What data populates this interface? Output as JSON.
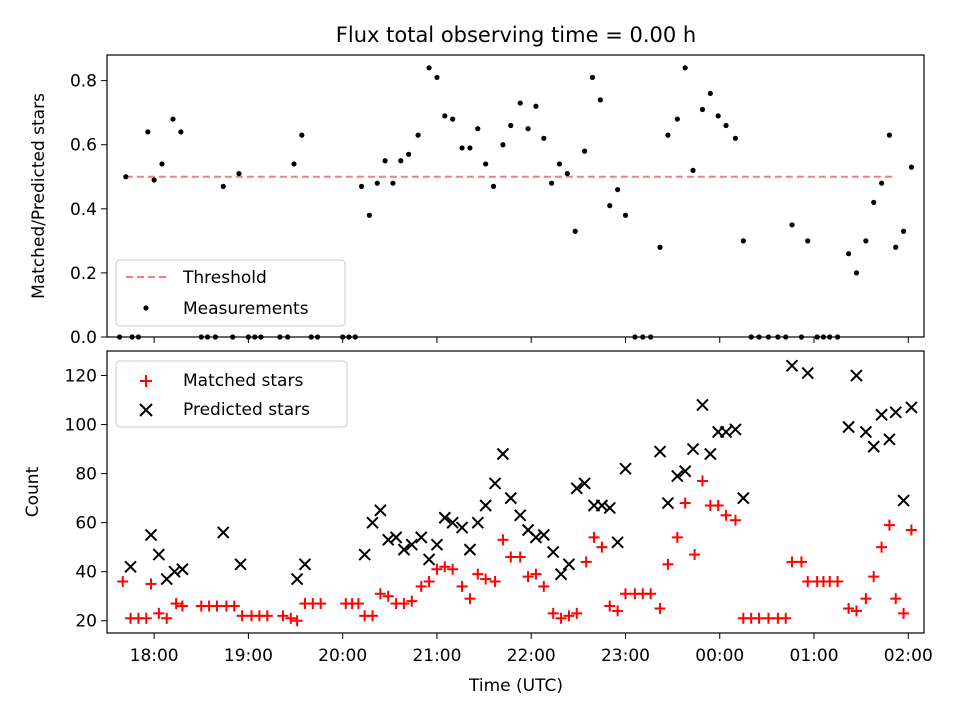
{
  "chart_data": [
    {
      "type": "scatter",
      "title": "Flux total observing time = 0.00 h",
      "xlabel": "",
      "ylabel": "Matched/Predicted stars",
      "xlim": [
        "17:30",
        "02:10"
      ],
      "ylim": [
        0,
        0.88
      ],
      "yticks": [
        "0.0",
        "0.2",
        "0.4",
        "0.6",
        "0.8"
      ],
      "grid": false,
      "legend_position": "lower-left",
      "threshold": {
        "name": "Threshold",
        "value": 0.5,
        "x_start": "17:42",
        "x_end": "01:50",
        "color": "#f08080"
      },
      "series": [
        {
          "name": "Measurements",
          "marker": "dot",
          "color": "#000000",
          "points": [
            [
              "17:38",
              0
            ],
            [
              "17:42",
              0.5
            ],
            [
              "17:46",
              0
            ],
            [
              "17:50",
              0
            ],
            [
              "17:56",
              0.64
            ],
            [
              "18:00",
              0.49
            ],
            [
              "18:05",
              0.54
            ],
            [
              "18:12",
              0.68
            ],
            [
              "18:17",
              0.64
            ],
            [
              "18:30",
              0
            ],
            [
              "18:34",
              0
            ],
            [
              "18:39",
              0
            ],
            [
              "18:44",
              0.47
            ],
            [
              "18:50",
              0
            ],
            [
              "18:54",
              0.51
            ],
            [
              "19:00",
              0
            ],
            [
              "19:04",
              0
            ],
            [
              "19:08",
              0
            ],
            [
              "19:20",
              0
            ],
            [
              "19:25",
              0
            ],
            [
              "19:29",
              0.54
            ],
            [
              "19:34",
              0.63
            ],
            [
              "19:40",
              0
            ],
            [
              "19:44",
              0
            ],
            [
              "20:00",
              0
            ],
            [
              "20:04",
              0
            ],
            [
              "20:08",
              0
            ],
            [
              "20:12",
              0.47
            ],
            [
              "20:17",
              0.38
            ],
            [
              "20:22",
              0.48
            ],
            [
              "20:27",
              0.55
            ],
            [
              "20:32",
              0.48
            ],
            [
              "20:37",
              0.55
            ],
            [
              "20:42",
              0.57
            ],
            [
              "20:48",
              0.63
            ],
            [
              "20:55",
              0.84
            ],
            [
              "21:00",
              0.81
            ],
            [
              "21:05",
              0.69
            ],
            [
              "21:10",
              0.68
            ],
            [
              "21:16",
              0.59
            ],
            [
              "21:21",
              0.59
            ],
            [
              "21:26",
              0.65
            ],
            [
              "21:31",
              0.54
            ],
            [
              "21:36",
              0.47
            ],
            [
              "21:42",
              0.6
            ],
            [
              "21:47",
              0.66
            ],
            [
              "21:53",
              0.73
            ],
            [
              "21:58",
              0.65
            ],
            [
              "22:03",
              0.72
            ],
            [
              "22:08",
              0.62
            ],
            [
              "22:13",
              0.48
            ],
            [
              "22:18",
              0.54
            ],
            [
              "22:23",
              0.51
            ],
            [
              "22:28",
              0.33
            ],
            [
              "22:34",
              0.58
            ],
            [
              "22:39",
              0.81
            ],
            [
              "22:44",
              0.74
            ],
            [
              "22:50",
              0.41
            ],
            [
              "22:55",
              0.46
            ],
            [
              "23:00",
              0.38
            ],
            [
              "23:06",
              0
            ],
            [
              "23:11",
              0
            ],
            [
              "23:16",
              0
            ],
            [
              "23:22",
              0.28
            ],
            [
              "23:27",
              0.63
            ],
            [
              "23:33",
              0.68
            ],
            [
              "23:38",
              0.84
            ],
            [
              "23:43",
              0.52
            ],
            [
              "23:49",
              0.71
            ],
            [
              "23:54",
              0.76
            ],
            [
              "23:59",
              0.69
            ],
            [
              "00:04",
              0.66
            ],
            [
              "00:10",
              0.62
            ],
            [
              "00:15",
              0.3
            ],
            [
              "00:20",
              0
            ],
            [
              "00:25",
              0
            ],
            [
              "00:31",
              0
            ],
            [
              "00:37",
              0
            ],
            [
              "00:42",
              0
            ],
            [
              "00:46",
              0.35
            ],
            [
              "00:52",
              0
            ],
            [
              "00:56",
              0.3
            ],
            [
              "01:02",
              0
            ],
            [
              "01:06",
              0
            ],
            [
              "01:10",
              0
            ],
            [
              "01:15",
              0
            ],
            [
              "01:22",
              0.26
            ],
            [
              "01:27",
              0.2
            ],
            [
              "01:33",
              0.3
            ],
            [
              "01:38",
              0.42
            ],
            [
              "01:43",
              0.48
            ],
            [
              "01:48",
              0.63
            ],
            [
              "01:52",
              0.28
            ],
            [
              "01:57",
              0.33
            ],
            [
              "02:02",
              0.53
            ]
          ]
        }
      ]
    },
    {
      "type": "scatter",
      "title": "",
      "xlabel": "Time (UTC)",
      "ylabel": "Count",
      "xlim": [
        "17:30",
        "02:10"
      ],
      "ylim": [
        15,
        130
      ],
      "xticks": [
        "18:00",
        "19:00",
        "20:00",
        "21:00",
        "22:00",
        "23:00",
        "00:00",
        "01:00",
        "02:00"
      ],
      "yticks": [
        "20",
        "40",
        "60",
        "80",
        "100",
        "120"
      ],
      "grid": false,
      "legend_position": "upper-left",
      "series": [
        {
          "name": "Matched stars",
          "marker": "plus",
          "color": "#ff0000",
          "points": [
            [
              "17:40",
              36
            ],
            [
              "17:45",
              21
            ],
            [
              "17:50",
              21
            ],
            [
              "17:55",
              21
            ],
            [
              "17:58",
              35
            ],
            [
              "18:03",
              23
            ],
            [
              "18:08",
              21
            ],
            [
              "18:14",
              27
            ],
            [
              "18:18",
              26
            ],
            [
              "18:30",
              26
            ],
            [
              "18:35",
              26
            ],
            [
              "18:40",
              26
            ],
            [
              "18:46",
              26
            ],
            [
              "18:51",
              26
            ],
            [
              "18:56",
              22
            ],
            [
              "19:02",
              22
            ],
            [
              "19:07",
              22
            ],
            [
              "19:12",
              22
            ],
            [
              "19:22",
              22
            ],
            [
              "19:27",
              21
            ],
            [
              "19:31",
              20
            ],
            [
              "19:36",
              27
            ],
            [
              "19:41",
              27
            ],
            [
              "19:46",
              27
            ],
            [
              "20:02",
              27
            ],
            [
              "20:06",
              27
            ],
            [
              "20:10",
              27
            ],
            [
              "20:14",
              22
            ],
            [
              "20:19",
              22
            ],
            [
              "20:24",
              31
            ],
            [
              "20:29",
              30
            ],
            [
              "20:34",
              27
            ],
            [
              "20:39",
              27
            ],
            [
              "20:44",
              28
            ],
            [
              "20:50",
              34
            ],
            [
              "20:55",
              36
            ],
            [
              "21:00",
              41
            ],
            [
              "21:05",
              42
            ],
            [
              "21:10",
              41
            ],
            [
              "21:16",
              34
            ],
            [
              "21:21",
              29
            ],
            [
              "21:26",
              39
            ],
            [
              "21:31",
              37
            ],
            [
              "21:37",
              36
            ],
            [
              "21:42",
              53
            ],
            [
              "21:47",
              46
            ],
            [
              "21:53",
              46
            ],
            [
              "21:58",
              38
            ],
            [
              "22:03",
              39
            ],
            [
              "22:08",
              34
            ],
            [
              "22:14",
              23
            ],
            [
              "22:19",
              21
            ],
            [
              "22:24",
              22
            ],
            [
              "22:29",
              23
            ],
            [
              "22:35",
              44
            ],
            [
              "22:40",
              54
            ],
            [
              "22:45",
              50
            ],
            [
              "22:50",
              26
            ],
            [
              "22:55",
              24
            ],
            [
              "23:00",
              31
            ],
            [
              "23:06",
              31
            ],
            [
              "23:11",
              31
            ],
            [
              "23:16",
              31
            ],
            [
              "23:22",
              25
            ],
            [
              "23:27",
              43
            ],
            [
              "23:33",
              54
            ],
            [
              "23:38",
              68
            ],
            [
              "23:44",
              47
            ],
            [
              "23:49",
              77
            ],
            [
              "23:54",
              67
            ],
            [
              "23:59",
              67
            ],
            [
              "00:04",
              63
            ],
            [
              "00:10",
              61
            ],
            [
              "00:15",
              21
            ],
            [
              "00:20",
              21
            ],
            [
              "00:25",
              21
            ],
            [
              "00:31",
              21
            ],
            [
              "00:37",
              21
            ],
            [
              "00:42",
              21
            ],
            [
              "00:46",
              44
            ],
            [
              "00:52",
              44
            ],
            [
              "00:56",
              36
            ],
            [
              "01:02",
              36
            ],
            [
              "01:06",
              36
            ],
            [
              "01:10",
              36
            ],
            [
              "01:15",
              36
            ],
            [
              "01:22",
              25
            ],
            [
              "01:27",
              24
            ],
            [
              "01:33",
              29
            ],
            [
              "01:38",
              38
            ],
            [
              "01:43",
              50
            ],
            [
              "01:48",
              59
            ],
            [
              "01:52",
              29
            ],
            [
              "01:57",
              23
            ],
            [
              "02:02",
              57
            ]
          ]
        },
        {
          "name": "Predicted stars",
          "marker": "x",
          "color": "#000000",
          "points": [
            [
              "17:45",
              42
            ],
            [
              "17:58",
              55
            ],
            [
              "18:03",
              47
            ],
            [
              "18:08",
              37
            ],
            [
              "18:13",
              40
            ],
            [
              "18:18",
              41
            ],
            [
              "18:44",
              56
            ],
            [
              "18:55",
              43
            ],
            [
              "19:31",
              37
            ],
            [
              "19:36",
              43
            ],
            [
              "20:14",
              47
            ],
            [
              "20:19",
              60
            ],
            [
              "20:24",
              65
            ],
            [
              "20:29",
              53
            ],
            [
              "20:34",
              54
            ],
            [
              "20:39",
              49
            ],
            [
              "20:44",
              51
            ],
            [
              "20:50",
              54
            ],
            [
              "20:55",
              45
            ],
            [
              "21:00",
              51
            ],
            [
              "21:05",
              62
            ],
            [
              "21:10",
              60
            ],
            [
              "21:16",
              58
            ],
            [
              "21:21",
              49
            ],
            [
              "21:26",
              60
            ],
            [
              "21:31",
              67
            ],
            [
              "21:37",
              76
            ],
            [
              "21:42",
              88
            ],
            [
              "21:47",
              70
            ],
            [
              "21:53",
              63
            ],
            [
              "21:58",
              57
            ],
            [
              "22:03",
              54
            ],
            [
              "22:08",
              55
            ],
            [
              "22:14",
              48
            ],
            [
              "22:19",
              39
            ],
            [
              "22:24",
              43
            ],
            [
              "22:29",
              74
            ],
            [
              "22:34",
              76
            ],
            [
              "22:40",
              67
            ],
            [
              "22:45",
              67
            ],
            [
              "22:50",
              66
            ],
            [
              "22:55",
              52
            ],
            [
              "23:00",
              82
            ],
            [
              "23:22",
              89
            ],
            [
              "23:27",
              68
            ],
            [
              "23:33",
              79
            ],
            [
              "23:38",
              81
            ],
            [
              "23:43",
              90
            ],
            [
              "23:49",
              108
            ],
            [
              "23:54",
              88
            ],
            [
              "23:59",
              97
            ],
            [
              "00:04",
              97
            ],
            [
              "00:10",
              98
            ],
            [
              "00:15",
              70
            ],
            [
              "00:46",
              124
            ],
            [
              "00:56",
              121
            ],
            [
              "01:22",
              99
            ],
            [
              "01:27",
              120
            ],
            [
              "01:33",
              97
            ],
            [
              "01:38",
              91
            ],
            [
              "01:43",
              104
            ],
            [
              "01:48",
              94
            ],
            [
              "01:52",
              105
            ],
            [
              "01:57",
              69
            ],
            [
              "02:02",
              107
            ]
          ]
        }
      ]
    }
  ]
}
